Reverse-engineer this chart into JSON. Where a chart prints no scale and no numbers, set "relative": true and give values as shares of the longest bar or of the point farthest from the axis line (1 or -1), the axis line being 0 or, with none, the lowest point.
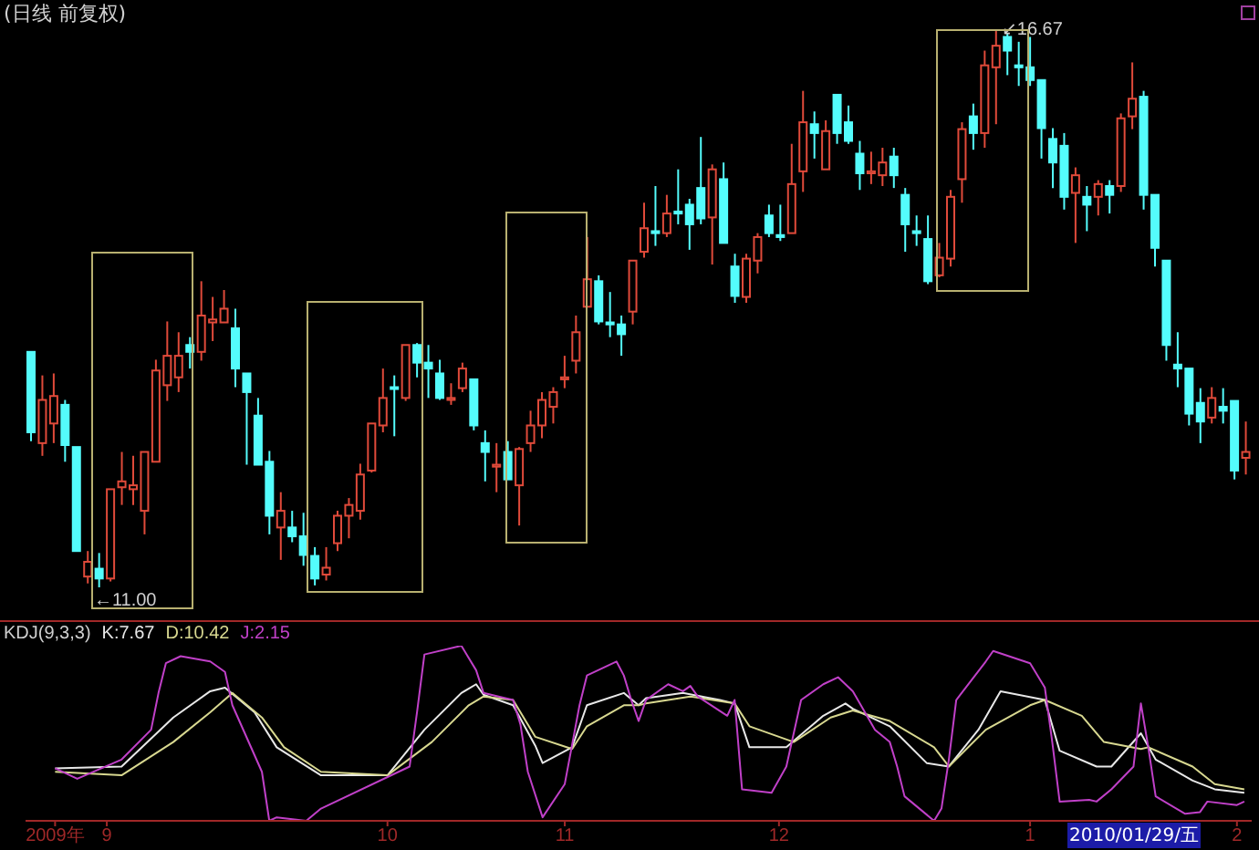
{
  "chart_data": [
    {
      "type": "candlestick",
      "title": "(日线 前复权)",
      "tick_labels": false,
      "categories": [
        null,
        null,
        null,
        null,
        null,
        null,
        null,
        null,
        null,
        null,
        null,
        null,
        null,
        null,
        null,
        null,
        null,
        null,
        null,
        null,
        null,
        null,
        null,
        null,
        null,
        null,
        null,
        null,
        null,
        null,
        null,
        null,
        null,
        null,
        null,
        null,
        null,
        null,
        null,
        null,
        null,
        null,
        null,
        null,
        null,
        null,
        null,
        null,
        null,
        null,
        null,
        null,
        null,
        null,
        null,
        null,
        null,
        null,
        null,
        null,
        null,
        null,
        null,
        null,
        null,
        null,
        null,
        null,
        null,
        null,
        null,
        null,
        null,
        null,
        null,
        null,
        null,
        null,
        null,
        null,
        null,
        null,
        null,
        null,
        null,
        null,
        null,
        null,
        null,
        null,
        null,
        null,
        null,
        null,
        null,
        null,
        null,
        null,
        null,
        null,
        null,
        null,
        null,
        null,
        null,
        null,
        null,
        null
      ],
      "ohlc": [
        [
          13.4,
          13.4,
          12.49,
          12.58
        ],
        [
          12.47,
          13.16,
          12.34,
          12.91
        ],
        [
          12.67,
          13.18,
          12.47,
          12.95
        ],
        [
          12.86,
          12.91,
          12.28,
          12.45
        ],
        [
          12.43,
          12.43,
          11.37,
          11.37
        ],
        [
          11.11,
          11.37,
          11.04,
          11.26
        ],
        [
          11.19,
          11.35,
          11.0,
          11.09
        ],
        [
          11.09,
          12.0,
          11.06,
          12.0
        ],
        [
          12.02,
          12.38,
          11.84,
          12.08
        ],
        [
          12.0,
          12.34,
          11.84,
          12.04
        ],
        [
          11.78,
          12.38,
          11.54,
          12.38
        ],
        [
          12.28,
          13.32,
          12.28,
          13.21
        ],
        [
          13.06,
          13.71,
          12.9,
          13.36
        ],
        [
          13.14,
          13.6,
          12.99,
          13.36
        ],
        [
          13.47,
          13.55,
          13.23,
          13.4
        ],
        [
          13.4,
          14.12,
          13.31,
          13.77
        ],
        [
          13.7,
          13.96,
          13.51,
          13.73
        ],
        [
          13.7,
          14.03,
          13.7,
          13.84
        ],
        [
          13.64,
          13.84,
          13.04,
          13.23
        ],
        [
          13.18,
          13.18,
          12.25,
          12.99
        ],
        [
          12.75,
          12.93,
          12.25,
          12.25
        ],
        [
          12.28,
          12.39,
          11.54,
          11.73
        ],
        [
          11.61,
          11.97,
          11.28,
          11.78
        ],
        [
          11.61,
          11.78,
          11.46,
          11.52
        ],
        [
          11.52,
          11.76,
          11.22,
          11.33
        ],
        [
          11.32,
          11.41,
          11.02,
          11.09
        ],
        [
          11.13,
          11.41,
          11.07,
          11.2
        ],
        [
          11.45,
          11.78,
          11.37,
          11.73
        ],
        [
          11.73,
          11.91,
          11.5,
          11.84
        ],
        [
          11.78,
          12.26,
          11.69,
          12.15
        ],
        [
          12.19,
          12.67,
          12.17,
          12.67
        ],
        [
          12.65,
          13.23,
          12.58,
          12.93
        ],
        [
          13.04,
          13.16,
          12.54,
          13.03
        ],
        [
          12.93,
          13.47,
          12.9,
          13.47
        ],
        [
          13.47,
          13.49,
          13.14,
          13.29
        ],
        [
          13.29,
          13.47,
          12.93,
          13.23
        ],
        [
          13.18,
          13.32,
          12.91,
          12.93
        ],
        [
          12.91,
          13.08,
          12.86,
          12.93
        ],
        [
          13.03,
          13.29,
          12.99,
          13.23
        ],
        [
          13.12,
          13.12,
          12.6,
          12.65
        ],
        [
          12.47,
          12.6,
          12.08,
          12.38
        ],
        [
          12.23,
          12.47,
          11.97,
          12.25
        ],
        [
          12.38,
          12.49,
          12.1,
          12.1
        ],
        [
          12.04,
          12.43,
          11.63,
          12.41
        ],
        [
          12.47,
          12.8,
          12.38,
          12.65
        ],
        [
          12.65,
          12.99,
          12.52,
          12.91
        ],
        [
          12.84,
          13.04,
          12.67,
          12.99
        ],
        [
          13.12,
          13.36,
          13.03,
          13.14
        ],
        [
          13.31,
          13.77,
          13.18,
          13.6
        ],
        [
          13.86,
          14.57,
          13.86,
          14.14
        ],
        [
          14.12,
          14.18,
          13.68,
          13.71
        ],
        [
          13.7,
          14.01,
          13.55,
          13.68
        ],
        [
          13.68,
          13.77,
          13.36,
          13.58
        ],
        [
          13.81,
          14.33,
          13.68,
          14.33
        ],
        [
          14.42,
          14.92,
          14.36,
          14.66
        ],
        [
          14.63,
          15.09,
          14.48,
          14.61
        ],
        [
          14.61,
          15.0,
          14.57,
          14.81
        ],
        [
          14.83,
          15.26,
          14.7,
          14.81
        ],
        [
          14.9,
          14.96,
          14.44,
          14.7
        ],
        [
          15.07,
          15.59,
          14.7,
          14.76
        ],
        [
          14.77,
          15.31,
          14.29,
          15.26
        ],
        [
          15.16,
          15.33,
          14.51,
          14.51
        ],
        [
          14.27,
          14.4,
          13.9,
          13.97
        ],
        [
          13.96,
          14.4,
          13.9,
          14.35
        ],
        [
          14.33,
          14.61,
          14.2,
          14.57
        ],
        [
          14.79,
          14.9,
          14.57,
          14.61
        ],
        [
          14.59,
          14.9,
          14.53,
          14.57
        ],
        [
          14.61,
          15.52,
          14.61,
          15.11
        ],
        [
          15.24,
          16.06,
          15.03,
          15.74
        ],
        [
          15.72,
          15.85,
          15.37,
          15.63
        ],
        [
          15.26,
          15.76,
          15.26,
          15.65
        ],
        [
          16.02,
          16.02,
          15.52,
          15.63
        ],
        [
          15.74,
          15.91,
          15.52,
          15.55
        ],
        [
          15.42,
          15.55,
          15.05,
          15.22
        ],
        [
          15.22,
          15.44,
          15.11,
          15.24
        ],
        [
          15.2,
          15.48,
          15.09,
          15.33
        ],
        [
          15.39,
          15.48,
          15.07,
          15.2
        ],
        [
          15.0,
          15.07,
          14.42,
          14.7
        ],
        [
          14.63,
          14.79,
          14.48,
          14.61
        ],
        [
          14.55,
          14.79,
          14.09,
          14.12
        ],
        [
          14.18,
          14.51,
          14.16,
          14.36
        ],
        [
          14.35,
          15.05,
          14.27,
          14.98
        ],
        [
          15.16,
          15.74,
          14.92,
          15.67
        ],
        [
          15.8,
          15.93,
          15.46,
          15.63
        ],
        [
          15.63,
          16.47,
          15.48,
          16.32
        ],
        [
          16.3,
          16.67,
          15.72,
          16.52
        ],
        [
          16.61,
          16.65,
          16.22,
          16.47
        ],
        [
          16.32,
          16.56,
          16.11,
          16.3
        ],
        [
          16.3,
          16.61,
          16.11,
          16.17
        ],
        [
          16.17,
          16.17,
          15.37,
          15.68
        ],
        [
          15.57,
          15.68,
          15.07,
          15.33
        ],
        [
          15.5,
          15.63,
          14.85,
          14.98
        ],
        [
          15.02,
          15.28,
          14.51,
          15.2
        ],
        [
          14.98,
          15.09,
          14.63,
          14.9
        ],
        [
          14.98,
          15.15,
          14.79,
          15.11
        ],
        [
          15.09,
          15.15,
          14.81,
          15.0
        ],
        [
          15.09,
          15.83,
          15.03,
          15.78
        ],
        [
          15.8,
          16.35,
          15.67,
          15.98
        ],
        [
          16.0,
          16.06,
          14.85,
          15.0
        ],
        [
          15.0,
          15.0,
          14.27,
          14.46
        ],
        [
          14.33,
          14.33,
          13.31,
          13.47
        ],
        [
          13.27,
          13.6,
          13.04,
          13.23
        ],
        [
          13.23,
          13.23,
          12.65,
          12.77
        ],
        [
          12.88,
          13.03,
          12.47,
          12.69
        ],
        [
          12.73,
          13.04,
          12.67,
          12.93
        ],
        [
          12.84,
          13.03,
          12.67,
          12.8
        ],
        [
          12.9,
          12.9,
          12.1,
          12.19
        ],
        [
          12.32,
          12.69,
          12.15,
          12.38
        ]
      ],
      "colors": [
        "#54fcfc",
        "#e04a3a",
        "#e04a3a",
        "#54fcfc",
        "#54fcfc",
        "#e04a3a",
        "#54fcfc",
        "#e04a3a",
        "#e04a3a",
        "#e04a3a",
        "#e04a3a",
        "#e04a3a",
        "#e04a3a",
        "#e04a3a",
        "#54fcfc",
        "#e04a3a",
        "#e04a3a",
        "#e04a3a",
        "#54fcfc",
        "#54fcfc",
        "#54fcfc",
        "#54fcfc",
        "#e04a3a",
        "#54fcfc",
        "#54fcfc",
        "#54fcfc",
        "#e04a3a",
        "#e04a3a",
        "#e04a3a",
        "#e04a3a",
        "#e04a3a",
        "#e04a3a",
        "#54fcfc",
        "#e04a3a",
        "#54fcfc",
        "#54fcfc",
        "#54fcfc",
        "#e04a3a",
        "#e04a3a",
        "#54fcfc",
        "#54fcfc",
        "#e04a3a",
        "#54fcfc",
        "#e04a3a",
        "#e04a3a",
        "#e04a3a",
        "#e04a3a",
        "#e04a3a",
        "#e04a3a",
        "#e04a3a",
        "#54fcfc",
        "#54fcfc",
        "#54fcfc",
        "#e04a3a",
        "#e04a3a",
        "#54fcfc",
        "#e04a3a",
        "#54fcfc",
        "#54fcfc",
        "#54fcfc",
        "#e04a3a",
        "#54fcfc",
        "#54fcfc",
        "#e04a3a",
        "#e04a3a",
        "#54fcfc",
        "#54fcfc",
        "#e04a3a",
        "#e04a3a",
        "#54fcfc",
        "#e04a3a",
        "#54fcfc",
        "#54fcfc",
        "#54fcfc",
        "#e04a3a",
        "#e04a3a",
        "#54fcfc",
        "#54fcfc",
        "#54fcfc",
        "#54fcfc",
        "#e04a3a",
        "#e04a3a",
        "#e04a3a",
        "#54fcfc",
        "#e04a3a",
        "#e04a3a",
        "#54fcfc",
        "#54fcfc",
        "#54fcfc",
        "#54fcfc",
        "#54fcfc",
        "#54fcfc",
        "#e04a3a",
        "#54fcfc",
        "#e04a3a",
        "#54fcfc",
        "#e04a3a",
        "#e04a3a",
        "#54fcfc",
        "#54fcfc",
        "#54fcfc",
        "#54fcfc",
        "#54fcfc",
        "#54fcfc",
        "#e04a3a",
        "#54fcfc",
        "#54fcfc",
        "#e04a3a"
      ],
      "annotations": [
        "←11.00",
        {
          "text": "↙16.67",
          "y": 16.67
        }
      ]
    },
    {
      "type": "line",
      "title": "KDJ(9,3,3)",
      "relative": true,
      "xlim": [
        "2009-08-21",
        "2010-02-03"
      ],
      "xticks": [
        {
          "value": "2009-08-25",
          "label": "2009年"
        },
        {
          "value": "2009-09-01",
          "label": "9"
        },
        {
          "value": "2009-10-09",
          "label": "10"
        },
        {
          "value": "2009-11-02",
          "label": "11"
        },
        {
          "value": "2009-12-01",
          "label": "12"
        },
        {
          "value": "2010-01-04",
          "label": "1"
        },
        {
          "value": "2010-02-01",
          "label": "2"
        }
      ],
      "annotations": [
        "2010/01/29/五"
      ],
      "series": [
        {
          "name": "K:7.67",
          "color": "#e8e8e8",
          "x": [
            "2009-08-25",
            "2009-09-03",
            "2009-09-10",
            "2009-09-15",
            "2009-09-17",
            "2009-09-21",
            "2009-09-24",
            "2009-09-30",
            "2009-10-09",
            "2009-10-14",
            "2009-10-19",
            "2009-10-21",
            "2009-10-22",
            "2009-10-26",
            "2009-10-29",
            "2009-10-30",
            "2009-11-03",
            "2009-11-05",
            "2009-11-10",
            "2009-11-12",
            "2009-11-13",
            "2009-11-18",
            "2009-11-23",
            "2009-11-25",
            "2009-11-27",
            "2009-12-02",
            "2009-12-07",
            "2009-12-10",
            "2009-12-11",
            "2009-12-16",
            "2009-12-21",
            "2009-12-24",
            "2009-12-28",
            "2009-12-31",
            "2010-01-06",
            "2010-01-08",
            "2010-01-13",
            "2010-01-15",
            "2010-01-19",
            "2010-01-21",
            "2010-01-26",
            "2010-01-29",
            "2010-02-02"
          ],
          "values": [
            0.3,
            0.31,
            0.59,
            0.74,
            0.76,
            0.62,
            0.42,
            0.26,
            0.26,
            0.52,
            0.73,
            0.78,
            0.72,
            0.66,
            0.43,
            0.33,
            0.42,
            0.66,
            0.73,
            0.66,
            0.7,
            0.73,
            0.69,
            0.67,
            0.42,
            0.42,
            0.6,
            0.67,
            0.64,
            0.54,
            0.33,
            0.31,
            0.52,
            0.74,
            0.69,
            0.4,
            0.31,
            0.31,
            0.5,
            0.35,
            0.23,
            0.18,
            0.16
          ]
        },
        {
          "name": "D:10.42",
          "color": "#d8d890",
          "x": [
            "2009-08-25",
            "2009-09-03",
            "2009-09-10",
            "2009-09-15",
            "2009-09-18",
            "2009-09-22",
            "2009-09-25",
            "2009-09-30",
            "2009-10-09",
            "2009-10-15",
            "2009-10-20",
            "2009-10-22",
            "2009-10-26",
            "2009-10-29",
            "2009-11-03",
            "2009-11-05",
            "2009-11-10",
            "2009-11-12",
            "2009-11-13",
            "2009-11-19",
            "2009-11-25",
            "2009-11-27",
            "2009-12-03",
            "2009-12-08",
            "2009-12-11",
            "2009-12-16",
            "2009-12-22",
            "2009-12-24",
            "2009-12-29",
            "2010-01-04",
            "2010-01-06",
            "2010-01-11",
            "2010-01-14",
            "2010-01-19",
            "2010-01-20",
            "2010-01-26",
            "2010-01-29",
            "2010-02-02"
          ],
          "values": [
            0.28,
            0.26,
            0.45,
            0.62,
            0.73,
            0.59,
            0.42,
            0.28,
            0.26,
            0.45,
            0.66,
            0.71,
            0.69,
            0.48,
            0.41,
            0.54,
            0.66,
            0.66,
            0.67,
            0.71,
            0.67,
            0.54,
            0.45,
            0.59,
            0.63,
            0.57,
            0.42,
            0.31,
            0.52,
            0.66,
            0.69,
            0.6,
            0.45,
            0.41,
            0.42,
            0.31,
            0.21,
            0.18
          ]
        },
        {
          "name": "J:2.15",
          "color": "#c040c8",
          "x": [
            "2009-08-25",
            "2009-08-28",
            "2009-09-03",
            "2009-09-07",
            "2009-09-08",
            "2009-09-09",
            "2009-09-11",
            "2009-09-15",
            "2009-09-17",
            "2009-09-18",
            "2009-09-22",
            "2009-09-23",
            "2009-09-24",
            "2009-09-28",
            "2009-09-30",
            "2009-10-12",
            "2009-10-13",
            "2009-10-14",
            "2009-10-19",
            "2009-10-21",
            "2009-10-22",
            "2009-10-26",
            "2009-10-27",
            "2009-10-28",
            "2009-10-30",
            "2009-11-02",
            "2009-11-04",
            "2009-11-05",
            "2009-11-09",
            "2009-11-10",
            "2009-11-11",
            "2009-11-12",
            "2009-11-13",
            "2009-11-16",
            "2009-11-18",
            "2009-11-19",
            "2009-11-20",
            "2009-11-24",
            "2009-11-25",
            "2009-11-26",
            "2009-11-30",
            "2009-12-02",
            "2009-12-04",
            "2009-12-07",
            "2009-12-09",
            "2009-12-11",
            "2009-12-14",
            "2009-12-16",
            "2009-12-17",
            "2009-12-18",
            "2009-12-22",
            "2009-12-23",
            "2009-12-24",
            "2009-12-25",
            "2009-12-29",
            "2009-12-30",
            "2010-01-04",
            "2010-01-06",
            "2010-01-07",
            "2010-01-08",
            "2010-01-12",
            "2010-01-13",
            "2010-01-15",
            "2010-01-18",
            "2010-01-19",
            "2010-01-20",
            "2010-01-21",
            "2010-01-25",
            "2010-01-27",
            "2010-01-28",
            "2010-02-01",
            "2010-02-02"
          ],
          "values": [
            0.3,
            0.24,
            0.35,
            0.52,
            0.73,
            0.9,
            0.94,
            0.91,
            0.85,
            0.66,
            0.28,
            0.0,
            0.02,
            0.0,
            0.07,
            0.31,
            0.62,
            0.95,
            1.0,
            0.86,
            0.73,
            0.69,
            0.55,
            0.28,
            0.02,
            0.21,
            0.66,
            0.83,
            0.91,
            0.83,
            0.69,
            0.57,
            0.69,
            0.78,
            0.74,
            0.77,
            0.71,
            0.6,
            0.69,
            0.18,
            0.16,
            0.31,
            0.69,
            0.78,
            0.82,
            0.74,
            0.52,
            0.45,
            0.31,
            0.14,
            0.0,
            0.07,
            0.35,
            0.69,
            0.91,
            0.97,
            0.9,
            0.76,
            0.45,
            0.11,
            0.12,
            0.11,
            0.18,
            0.31,
            0.67,
            0.42,
            0.14,
            0.04,
            0.05,
            0.11,
            0.09,
            0.11
          ]
        }
      ]
    }
  ]
}
